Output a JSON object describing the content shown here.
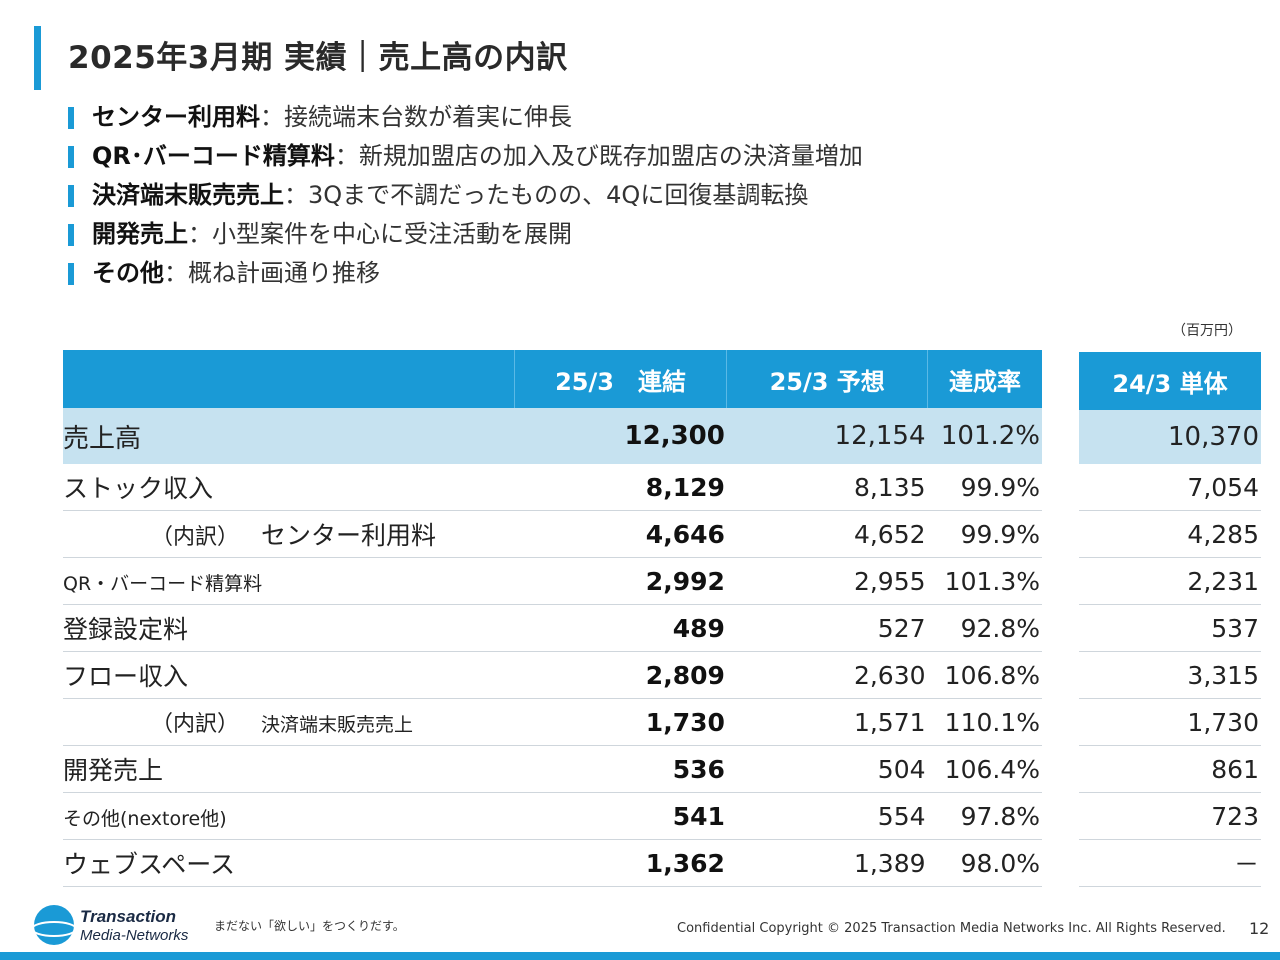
{
  "title": "2025年3月期 実績｜売上高の内訳",
  "bullets": [
    {
      "head": "センター利用料",
      "sep": "：",
      "body": "接続端末台数が着実に伸長"
    },
    {
      "head": "QR･バーコード精算料",
      "sep": "：",
      "body": "新規加盟店の加入及び既存加盟店の決済量増加"
    },
    {
      "head": "決済端末販売売上",
      "sep": "：",
      "body": "3Qまで不調だったものの、4Qに回復基調転換"
    },
    {
      "head": "開発売上",
      "sep": "：",
      "body": "小型案件を中心に受注活動を展開"
    },
    {
      "head": "その他",
      "sep": "：",
      "body": "概ね計画通り推移"
    }
  ],
  "unit": "（百万円）",
  "table": {
    "headers": [
      "",
      "25/3　連結",
      "25/3 予想",
      "達成率"
    ],
    "side_header": "24/3 単体",
    "rows": [
      {
        "label": "売上高",
        "sub": "",
        "item": "",
        "v1": "12,300",
        "v2": "12,154",
        "v3": "101.2%",
        "side": "10,370"
      },
      {
        "label": "ストック収入",
        "sub": "",
        "item": "",
        "v1": "8,129",
        "v2": "8,135",
        "v3": "99.9%",
        "side": "7,054"
      },
      {
        "label": "",
        "sub": "（内訳）",
        "item": "センター利用料",
        "v1": "4,646",
        "v2": "4,652",
        "v3": "99.9%",
        "side": "4,285"
      },
      {
        "label": "",
        "sub": "",
        "item": "QR・バーコード精算料",
        "v1": "2,992",
        "v2": "2,955",
        "v3": "101.3%",
        "side": "2,231"
      },
      {
        "label": "",
        "sub": "",
        "item": "登録設定料",
        "v1": "489",
        "v2": "527",
        "v3": "92.8%",
        "side": "537"
      },
      {
        "label": "フロー収入",
        "sub": "",
        "item": "",
        "v1": "2,809",
        "v2": "2,630",
        "v3": "106.8%",
        "side": "3,315"
      },
      {
        "label": "",
        "sub": "（内訳）",
        "item": "決済端末販売売上",
        "v1": "1,730",
        "v2": "1,571",
        "v3": "110.1%",
        "side": "1,730"
      },
      {
        "label": "",
        "sub": "",
        "item": "開発売上",
        "v1": "536",
        "v2": "504",
        "v3": "106.4%",
        "side": "861"
      },
      {
        "label": "",
        "sub": "",
        "item": "その他(nextore他)",
        "v1": "541",
        "v2": "554",
        "v3": "97.8%",
        "side": "723"
      },
      {
        "label": "ウェブスペース",
        "sub": "",
        "item": "",
        "v1": "1,362",
        "v2": "1,389",
        "v3": "98.0%",
        "side": "－"
      }
    ]
  },
  "logo": {
    "line1": "Transaction",
    "line2": "Media-Networks"
  },
  "slogan": "まだない「欲しい」をつくりだす。",
  "footer": "Confidential  Copyright © 2025 Transaction Media Networks Inc. All Rights Reserved.",
  "page_number": "12",
  "colors": {
    "accent": "#1a9ad6",
    "highlight_row": "#c6e2f0"
  }
}
